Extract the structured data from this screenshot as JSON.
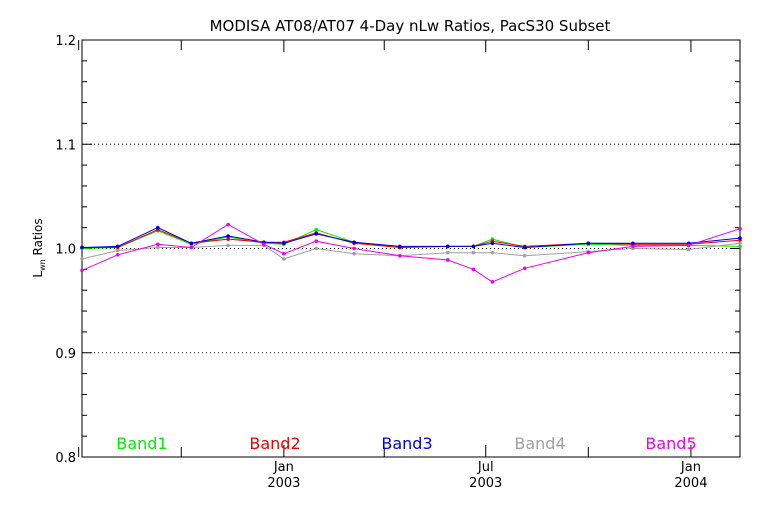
{
  "chart_data": {
    "type": "line",
    "title": "MODISA AT08/AT07 4-Day nLw Ratios, PacS30 Subset",
    "ylabel_main": "L",
    "ylabel_sub": "wn",
    "ylabel_rest": " Ratios",
    "xlabel": "",
    "xlim": [
      "2002-07-04",
      "2004-02-14"
    ],
    "ylim": [
      0.8,
      1.2
    ],
    "yticks": [
      0.8,
      0.9,
      1.0,
      1.1,
      1.2
    ],
    "ytick_labels": [
      "0.8",
      "0.9",
      "1.0",
      "1.1",
      "1.2"
    ],
    "grid_y": [
      0.9,
      1.1
    ],
    "reference_line": 1.0,
    "xticks": [
      {
        "date": "2003-01-01",
        "line1": "Jan",
        "line2": "2003"
      },
      {
        "date": "2003-07-01",
        "line1": "Jul",
        "line2": "2003"
      },
      {
        "date": "2004-01-01",
        "line1": "Jan",
        "line2": "2004"
      }
    ],
    "x_minor_ticks": [
      "2002-07-01",
      "2002-10-01",
      "2003-04-01",
      "2003-10-01"
    ],
    "x": [
      "2002-07-04",
      "2002-08-05",
      "2002-09-10",
      "2002-10-10",
      "2002-11-12",
      "2002-12-14",
      "2003-01-01",
      "2003-01-30",
      "2003-03-05",
      "2003-04-15",
      "2003-05-28",
      "2003-06-20",
      "2003-07-07",
      "2003-08-05",
      "2003-10-01",
      "2003-11-10",
      "2003-12-30",
      "2004-02-14"
    ],
    "series": [
      {
        "name": "Band1",
        "color": "#00ee00",
        "values": [
          1.0,
          1.001,
          1.017,
          1.004,
          1.011,
          1.005,
          1.004,
          1.018,
          1.006,
          1.001,
          1.002,
          1.002,
          1.009,
          1.001,
          1.004,
          1.003,
          1.003,
          1.002
        ]
      },
      {
        "name": "Band2",
        "color": "#ee0000",
        "values": [
          1.001,
          1.001,
          1.018,
          1.005,
          1.009,
          1.006,
          1.006,
          1.015,
          1.005,
          1.001,
          1.002,
          1.002,
          1.007,
          1.002,
          1.005,
          1.004,
          1.004,
          1.008
        ]
      },
      {
        "name": "Band3",
        "color": "#0000dd",
        "values": [
          1.001,
          1.002,
          1.02,
          1.005,
          1.012,
          1.006,
          1.005,
          1.014,
          1.006,
          1.002,
          1.002,
          1.002,
          1.005,
          1.001,
          1.005,
          1.005,
          1.005,
          1.01
        ]
      },
      {
        "name": "Band4",
        "color": "#a0a0a0",
        "values": [
          0.99,
          0.998,
          1.001,
          1.001,
          1.003,
          1.003,
          0.99,
          1.0,
          0.995,
          0.993,
          0.996,
          0.996,
          0.996,
          0.993,
          0.997,
          1.0,
          0.999,
          1.005
        ]
      },
      {
        "name": "Band5",
        "color": "#ee00ee",
        "values": [
          0.979,
          0.994,
          1.004,
          1.001,
          1.023,
          1.004,
          0.995,
          1.007,
          1.0,
          0.993,
          0.989,
          0.98,
          0.968,
          0.981,
          0.996,
          1.002,
          1.003,
          1.019
        ]
      }
    ]
  }
}
